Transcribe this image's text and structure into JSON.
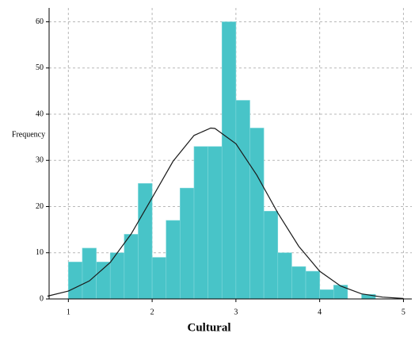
{
  "chart_data": {
    "type": "histogram",
    "x_label": "Cultural",
    "y_label": "Frequency",
    "bins": [
      1,
      1.1667,
      1.3333,
      1.5,
      1.6667,
      1.8333,
      2,
      2.1667,
      2.3333,
      2.5,
      2.6667,
      2.8333,
      3,
      3.1667,
      3.3333,
      3.5,
      3.6667,
      3.8333,
      4,
      4.1667,
      4.3333,
      4.5,
      4.6667
    ],
    "values": [
      8,
      11,
      8,
      10,
      14,
      25,
      9,
      17,
      24,
      33,
      33,
      60,
      43,
      37,
      19,
      10,
      7,
      6,
      2,
      3,
      0,
      1
    ],
    "color": "#48c4c8",
    "curve": {
      "color": "#1a1a1a",
      "x": [
        0.75,
        1,
        1.25,
        1.5,
        1.75,
        2,
        2.25,
        2.5,
        2.7,
        2.75,
        3,
        3.25,
        3.5,
        3.75,
        4,
        4.25,
        4.5,
        4.75,
        5
      ],
      "values": [
        0.6,
        1.7,
        3.9,
        7.9,
        14.1,
        21.9,
        29.8,
        35.4,
        37,
        36.9,
        33.6,
        26.8,
        18.6,
        11.4,
        6.0,
        2.8,
        1.1,
        0.4,
        0.1
      ]
    },
    "xlim": [
      0.77,
      5.1
    ],
    "ylim": [
      0,
      63
    ],
    "xticks": [
      1,
      2,
      3,
      4,
      5
    ],
    "yticks": [
      0,
      10,
      20,
      30,
      40,
      50,
      60
    ],
    "grid": true
  }
}
